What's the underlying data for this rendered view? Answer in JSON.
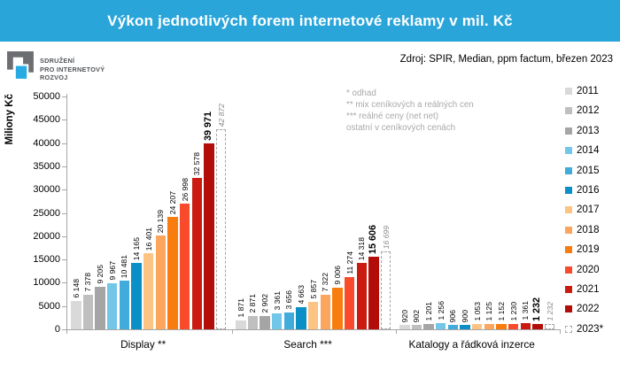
{
  "header": {
    "title": "Výkon jednotlivých forem internetové reklamy v mil. Kč"
  },
  "logo": {
    "lines": [
      "SDRUŽENÍ",
      "PRO INTERNETOVÝ",
      "ROZVOJ"
    ]
  },
  "source": "Zdroj: SPIR, Median, ppm factum, březen 2023",
  "notes": [
    "* odhad",
    "** mix ceníkových a reálných cen",
    "*** reálné ceny (net net)",
    "ostatní v ceníkových cenách"
  ],
  "colors": {
    "header_bg": "#2AA5DA",
    "logo_gray": "#6D6E71",
    "logo_blue": "#29ABE2",
    "axis": "#A6A6A6",
    "note_text": "#A9A9A9",
    "forecast_text": "#8A8A8A"
  },
  "chart_data": {
    "type": "bar",
    "title": "Výkon jednotlivých forem internetové reklamy v mil. Kč",
    "xlabel": "",
    "ylabel": "Miliony Kč",
    "ylim": [
      0,
      50000
    ],
    "ytick_step": 5000,
    "grid": false,
    "legend_position": "right",
    "categories": [
      "Display **",
      "Search ***",
      "Katalogy a řádková inzerce"
    ],
    "category_keys": [
      "display",
      "search",
      "katalogy"
    ],
    "series": [
      {
        "name": "2011",
        "color": "#D9D9D9",
        "values": [
          6148,
          1871,
          920
        ]
      },
      {
        "name": "2012",
        "color": "#BFBFBF",
        "values": [
          7378,
          2871,
          902
        ]
      },
      {
        "name": "2013",
        "color": "#A5A5A5",
        "values": [
          9205,
          2902,
          1201
        ]
      },
      {
        "name": "2014",
        "color": "#72C7E9",
        "values": [
          9967,
          3361,
          1256
        ]
      },
      {
        "name": "2015",
        "color": "#41ACDB",
        "values": [
          10481,
          3656,
          906
        ]
      },
      {
        "name": "2016",
        "color": "#0B8FC7",
        "values": [
          14165,
          4663,
          900
        ]
      },
      {
        "name": "2017",
        "color": "#FDC383",
        "values": [
          16401,
          5857,
          1053
        ]
      },
      {
        "name": "2018",
        "color": "#FCA55C",
        "values": [
          20139,
          7322,
          1125
        ]
      },
      {
        "name": "2019",
        "color": "#F87D0E",
        "values": [
          24207,
          9006,
          1152
        ]
      },
      {
        "name": "2020",
        "color": "#F94B2B",
        "values": [
          26998,
          11274,
          1230
        ]
      },
      {
        "name": "2021",
        "color": "#CB1B10",
        "values": [
          32578,
          14318,
          1361
        ]
      },
      {
        "name": "2022",
        "color": "#B20D09",
        "values": [
          39971,
          15606,
          1232
        ],
        "emphasis": true
      },
      {
        "name": "2023*",
        "color": "#FFFFFF",
        "values": [
          42872,
          16699,
          1232
        ],
        "forecast": true
      }
    ]
  }
}
